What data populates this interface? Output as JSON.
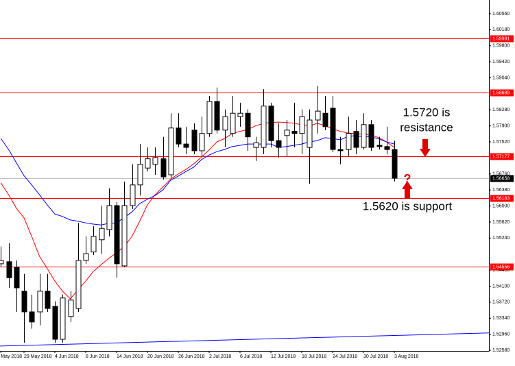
{
  "chart_data": {
    "type": "candlestick",
    "categories": [
      "May 2018",
      null,
      null,
      "29 May 2018",
      null,
      null,
      null,
      "4 Jun 2018",
      null,
      null,
      null,
      "8 Jun 2018",
      null,
      null,
      null,
      "14 Jun 2018",
      null,
      null,
      null,
      "20 Jun 2018",
      null,
      null,
      null,
      "26 Jun 2018",
      null,
      null,
      null,
      "2 Jul 2018",
      null,
      null,
      null,
      "6 Jul 2018",
      null,
      null,
      null,
      "12 Jul 2018",
      null,
      null,
      null,
      "18 Jul 2018",
      null,
      null,
      null,
      "24 Jul 2018",
      null,
      null,
      null,
      "30 Jul 2018",
      null,
      null,
      null,
      "3 Aug 2018"
    ],
    "open": [
      1.5463,
      1.5468,
      1.5455,
      1.5398,
      1.5349,
      1.5349,
      1.5398,
      1.5362,
      1.5284,
      1.5338,
      1.5357,
      1.5471,
      1.5491,
      1.552,
      1.5544,
      1.5601,
      1.5458,
      1.5601,
      1.565,
      1.569,
      1.5699,
      1.5712,
      1.5674,
      1.5785,
      1.5747,
      1.578,
      1.5731,
      1.5772,
      1.5848,
      1.578,
      1.5772,
      1.5812,
      1.582,
      1.5739,
      1.5739,
      1.5837,
      1.5755,
      1.5767,
      1.5777,
      1.5772,
      1.5739,
      1.5804,
      1.582,
      1.5832,
      1.5734,
      1.5734,
      1.5777,
      1.5739,
      1.5793,
      1.5744,
      1.5741,
      1.5734
    ],
    "high": [
      1.5504,
      1.5512,
      1.5471,
      1.5439,
      1.539,
      1.5439,
      1.5439,
      1.5374,
      1.539,
      1.5398,
      1.556,
      1.5528,
      1.5552,
      1.5601,
      1.5642,
      1.5609,
      1.5658,
      1.5699,
      1.5747,
      1.5739,
      1.5739,
      1.5764,
      1.582,
      1.582,
      1.5788,
      1.5796,
      1.5812,
      1.5861,
      1.5881,
      1.5829,
      1.5861,
      1.5845,
      1.5829,
      1.5764,
      1.5877,
      1.5845,
      1.5796,
      1.5804,
      1.5845,
      1.5829,
      1.5829,
      1.5885,
      1.5861,
      1.5861,
      1.5764,
      1.5812,
      1.5804,
      1.582,
      1.5804,
      1.5764,
      1.5788,
      1.5755
    ],
    "low": [
      1.5455,
      1.5406,
      1.5349,
      1.5276,
      1.5309,
      1.5317,
      1.5349,
      1.5276,
      1.5276,
      1.5325,
      1.5349,
      1.5463,
      1.5484,
      1.5487,
      1.5528,
      1.543,
      1.5455,
      1.5593,
      1.5625,
      1.5682,
      1.5674,
      1.5663,
      1.5666,
      1.5739,
      1.5723,
      1.5723,
      1.5718,
      1.5764,
      1.5772,
      1.5739,
      1.5764,
      1.5788,
      1.5731,
      1.5707,
      1.5723,
      1.5739,
      1.5715,
      1.5718,
      1.5739,
      1.5723,
      1.5653,
      1.5772,
      1.578,
      1.5728,
      1.5699,
      1.5718,
      1.5723,
      1.5734,
      1.5731,
      1.5734,
      1.5723,
      1.5658
    ],
    "close": [
      1.5471,
      1.543,
      1.5406,
      1.5349,
      1.5325,
      1.5398,
      1.5357,
      1.5284,
      1.5382,
      1.5377,
      1.5471,
      1.5487,
      1.5528,
      1.5547,
      1.5601,
      1.5463,
      1.5601,
      1.565,
      1.5699,
      1.5712,
      1.5715,
      1.5669,
      1.5785,
      1.5747,
      1.5739,
      1.5731,
      1.5772,
      1.5848,
      1.578,
      1.5812,
      1.582,
      1.582,
      1.5764,
      1.575,
      1.5837,
      1.5755,
      1.5739,
      1.578,
      1.5772,
      1.5812,
      1.5804,
      1.5825,
      1.5788,
      1.5734,
      1.5731,
      1.5772,
      1.5739,
      1.5793,
      1.5739,
      1.5741,
      1.5734,
      1.5666
    ],
    "up_color": "#ffffff",
    "down_color": "#000000",
    "wick_color": "#000000",
    "lines": [
      {
        "color": "#ff0000",
        "values": [
          1.5655,
          1.5627,
          1.5595,
          1.5572,
          1.5528,
          1.5481,
          1.5452,
          1.5422,
          1.5398,
          1.538,
          1.5401,
          1.5422,
          1.5445,
          1.5461,
          1.5476,
          1.5489,
          1.5504,
          1.5528,
          1.5564,
          1.5603,
          1.5627,
          1.5645,
          1.5664,
          1.5676,
          1.5687,
          1.57,
          1.5716,
          1.5733,
          1.5752,
          1.576,
          1.5772,
          1.5777,
          1.5781,
          1.579,
          1.5796,
          1.5798,
          1.5799,
          1.5798,
          1.5796,
          1.5793,
          1.579,
          1.5796,
          1.5791,
          1.5783,
          1.5777,
          1.5773,
          1.5772,
          1.577,
          1.5768,
          1.5762,
          1.5752,
          1.5739
        ]
      },
      {
        "color": "#0000ff",
        "values": [
          1.576,
          1.5734,
          1.5703,
          1.5672,
          1.565,
          1.5627,
          1.5603,
          1.5581,
          1.5575,
          1.5567,
          1.5564,
          1.556,
          1.5557,
          1.5555,
          1.5559,
          1.556,
          1.5573,
          1.5586,
          1.5606,
          1.5616,
          1.5625,
          1.5638,
          1.5661,
          1.5671,
          1.5682,
          1.5692,
          1.571,
          1.5721,
          1.5729,
          1.5734,
          1.5741,
          1.5744,
          1.5747,
          1.5747,
          1.5747,
          1.5747,
          1.5739,
          1.5741,
          1.5744,
          1.5747,
          1.5752,
          1.5755,
          1.5762,
          1.576,
          1.5757,
          1.5765,
          1.5767,
          1.5764,
          1.5764,
          1.5759,
          1.5752,
          1.5747
        ]
      }
    ],
    "levels": [
      {
        "value": 1.59981,
        "label": "1.59981",
        "color": "#ff0000"
      },
      {
        "value": 1.58689,
        "label": "1.58689",
        "color": "#ff0000"
      },
      {
        "value": 1.57177,
        "label": "1.57177",
        "color": "#ff0000"
      },
      {
        "value": 1.56183,
        "label": "1.56183",
        "color": "#ff0000"
      },
      {
        "value": 1.54556,
        "label": "1.54556",
        "color": "#ff0000"
      }
    ],
    "current_price": {
      "value": 1.56658,
      "label": "1.56658",
      "color": "#c0c0c0"
    },
    "trendline": {
      "color": "#0000ff",
      "start": 1.5268,
      "end": 1.5299
    },
    "ylim": [
      1.52564,
      1.60885
    ],
    "yticks": [
      {
        "value": 1.6056,
        "label": "1.60560"
      },
      {
        "value": 1.6018,
        "label": "1.60180"
      },
      {
        "value": 1.598,
        "label": "1.59800"
      },
      {
        "value": 1.5942,
        "label": "1.59420"
      },
      {
        "value": 1.5904,
        "label": "1.59040"
      },
      {
        "value": 1.5828,
        "label": "1.58280"
      },
      {
        "value": 1.579,
        "label": "1.57900"
      },
      {
        "value": 1.5752,
        "label": "1.57520"
      },
      {
        "value": 1.5676,
        "label": "1.56760"
      },
      {
        "value": 1.5638,
        "label": "1.56380"
      },
      {
        "value": 1.56,
        "label": "1.56000"
      },
      {
        "value": 1.5562,
        "label": "1.55620"
      },
      {
        "value": 1.5524,
        "label": "1.55240"
      },
      {
        "value": 1.5448,
        "label": "1.54480"
      },
      {
        "value": 1.541,
        "label": "1.54100"
      },
      {
        "value": 1.5372,
        "label": "1.53720"
      },
      {
        "value": 1.5334,
        "label": "1.53340"
      },
      {
        "value": 1.5296,
        "label": "1.52960"
      },
      {
        "value": 1.5258,
        "label": "1.52580"
      }
    ],
    "annotations": {
      "resistance": [
        "1.5720 is",
        "resistance"
      ],
      "question": "?",
      "support": "1.5620 is support"
    }
  }
}
